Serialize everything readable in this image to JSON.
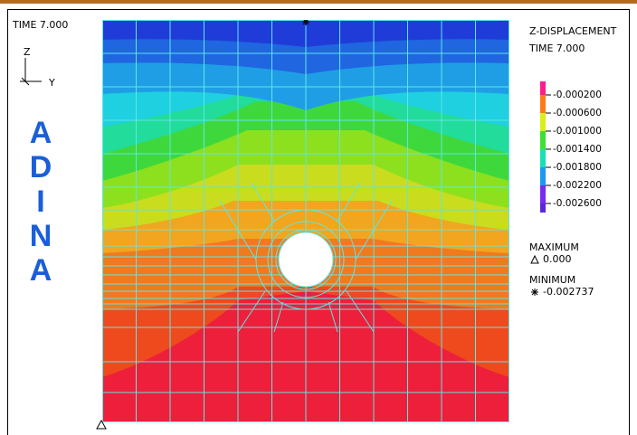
{
  "header": {
    "time_label": "TIME 7.000"
  },
  "axes_triad": {
    "z_label": "Z",
    "y_label": "Y"
  },
  "logo": {
    "letters": [
      "A",
      "D",
      "I",
      "N",
      "A"
    ]
  },
  "legend": {
    "title": "Z-DISPLACEMENT",
    "time": "TIME 7.000",
    "entries": [
      {
        "label": "-0.000200",
        "color": "#ff1c8e"
      },
      {
        "label": "-0.000600",
        "color": "#ff7a1a"
      },
      {
        "label": "-0.001000",
        "color": "#d9ef1c"
      },
      {
        "label": "-0.001400",
        "color": "#3fe033"
      },
      {
        "label": "-0.001800",
        "color": "#17e0b8"
      },
      {
        "label": "-0.002200",
        "color": "#1b9af0"
      },
      {
        "label": "-0.002600",
        "color": "#7a2bf0"
      }
    ],
    "maximum_label": "MAXIMUM",
    "maximum_value": "0.000",
    "minimum_label": "MINIMUM",
    "minimum_value": "-0.002737"
  },
  "colors": {
    "mesh": "#5fe6e6",
    "band_colors": [
      "#ee1f3a",
      "#ee4a1e",
      "#f07a1e",
      "#f2a51e",
      "#c9dc1e",
      "#8de01e",
      "#3fd83c",
      "#21dc9a",
      "#1fd0e0",
      "#1f9ee6",
      "#1f66e0",
      "#1f3cd8"
    ]
  }
}
